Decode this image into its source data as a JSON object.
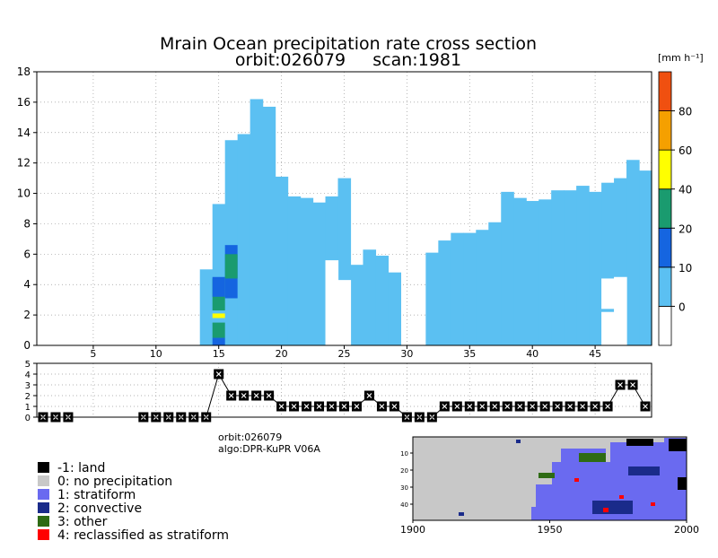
{
  "chart_data": [
    {
      "type": "heatmap",
      "title": "Mrain Ocean precipitation rate cross section",
      "subtitle": "orbit:026079     scan:1981",
      "xlim": [
        1,
        49
      ],
      "ylim": [
        0,
        18
      ],
      "x_ticks": [
        5,
        10,
        15,
        20,
        25,
        30,
        35,
        40,
        45
      ],
      "y_ticks": [
        0,
        2,
        4,
        6,
        8,
        10,
        12,
        14,
        16,
        18
      ],
      "grid": true,
      "colorbar": {
        "unit_label": "[mm h⁻¹]",
        "tick_labels": [
          "0",
          "10",
          "20",
          "40",
          "60",
          "80"
        ],
        "bins": [
          {
            "range": "<0",
            "color": "#ffffff"
          },
          {
            "range": "0-10",
            "color": "#5bc0f2"
          },
          {
            "range": "10-20",
            "color": "#1565e0"
          },
          {
            "range": "20-40",
            "color": "#1a9b6f"
          },
          {
            "range": "40-60",
            "color": "#ffff00"
          },
          {
            "range": "60-80",
            "color": "#f5a000"
          },
          {
            "range": "80+",
            "color": "#f05010"
          }
        ]
      },
      "columns": [
        {
          "x": 14,
          "top": 5.0,
          "base": 0
        },
        {
          "x": 15,
          "top": 9.3,
          "base": 0
        },
        {
          "x": 16,
          "top": 13.5,
          "base": 0
        },
        {
          "x": 17,
          "top": 13.9,
          "base": 0
        },
        {
          "x": 18,
          "top": 16.2,
          "base": 0
        },
        {
          "x": 19,
          "top": 15.7,
          "base": 0
        },
        {
          "x": 20,
          "top": 11.1,
          "base": 0
        },
        {
          "x": 21,
          "top": 9.8,
          "base": 0
        },
        {
          "x": 22,
          "top": 9.7,
          "base": 0
        },
        {
          "x": 23,
          "top": 9.4,
          "base": 0
        },
        {
          "x": 24,
          "top": 9.8,
          "base": 0
        },
        {
          "x": 25,
          "top": 11.0,
          "base": 0
        },
        {
          "x": 26,
          "top": 5.3,
          "base": 0
        },
        {
          "x": 27,
          "top": 6.3,
          "base": 0
        },
        {
          "x": 28,
          "top": 5.9,
          "base": 0
        },
        {
          "x": 29,
          "top": 4.8,
          "base": 0
        },
        {
          "x": 32,
          "top": 6.1,
          "base": 0
        },
        {
          "x": 33,
          "top": 6.9,
          "base": 0
        },
        {
          "x": 34,
          "top": 7.4,
          "base": 0
        },
        {
          "x": 35,
          "top": 7.4,
          "base": 0
        },
        {
          "x": 36,
          "top": 7.6,
          "base": 0
        },
        {
          "x": 37,
          "top": 8.1,
          "base": 0
        },
        {
          "x": 38,
          "top": 10.1,
          "base": 0
        },
        {
          "x": 39,
          "top": 9.7,
          "base": 0
        },
        {
          "x": 40,
          "top": 9.5,
          "base": 0
        },
        {
          "x": 41,
          "top": 9.6,
          "base": 0
        },
        {
          "x": 42,
          "top": 10.2,
          "base": 0
        },
        {
          "x": 43,
          "top": 10.2,
          "base": 0
        },
        {
          "x": 44,
          "top": 10.5,
          "base": 0
        },
        {
          "x": 45,
          "top": 10.1,
          "base": 0
        },
        {
          "x": 46,
          "top": 10.7,
          "base": 0
        },
        {
          "x": 47,
          "top": 11.0,
          "base": 0
        },
        {
          "x": 48,
          "top": 12.2,
          "base": 0
        },
        {
          "x": 49,
          "top": 11.5,
          "base": 0
        }
      ],
      "intense_cells": [
        {
          "x": 15,
          "y0": 0.0,
          "y1": 0.5,
          "bin": "10-20"
        },
        {
          "x": 15,
          "y0": 0.5,
          "y1": 1.5,
          "bin": "20-40"
        },
        {
          "x": 15,
          "y0": 1.8,
          "y1": 2.1,
          "bin": "40-60"
        },
        {
          "x": 15,
          "y0": 2.3,
          "y1": 4.4,
          "bin": "20-40"
        },
        {
          "x": 15,
          "y0": 3.2,
          "y1": 4.5,
          "bin": "10-20"
        },
        {
          "x": 16,
          "y0": 3.1,
          "y1": 6.6,
          "bin": "10-20"
        },
        {
          "x": 16,
          "y0": 4.4,
          "y1": 6.0,
          "bin": "20-40"
        }
      ],
      "empty_cells": [
        {
          "x": 24,
          "y0": 0.0,
          "y1": 5.6
        },
        {
          "x": 25,
          "y0": 0.0,
          "y1": 4.3
        },
        {
          "x": 46,
          "y0": 0.0,
          "y1": 2.2
        },
        {
          "x": 46,
          "y0": 2.4,
          "y1": 4.4
        },
        {
          "x": 47,
          "y0": 0.0,
          "y1": 4.5
        }
      ]
    },
    {
      "type": "line",
      "ylim": [
        0,
        5
      ],
      "y_ticks": [
        0,
        1,
        2,
        3,
        4,
        5
      ],
      "x": [
        1,
        2,
        3,
        9,
        10,
        11,
        12,
        13,
        14,
        15,
        16,
        17,
        18,
        19,
        20,
        21,
        22,
        23,
        24,
        25,
        26,
        27,
        28,
        29,
        30,
        31,
        32,
        33,
        34,
        35,
        36,
        37,
        38,
        39,
        40,
        41,
        42,
        43,
        44,
        45,
        46,
        47,
        48,
        49
      ],
      "values": [
        0,
        0,
        0,
        0,
        0,
        0,
        0,
        0,
        0,
        4,
        2,
        2,
        2,
        2,
        1,
        1,
        1,
        1,
        1,
        1,
        1,
        2,
        1,
        1,
        0,
        0,
        0,
        1,
        1,
        1,
        1,
        1,
        1,
        1,
        1,
        1,
        1,
        1,
        1,
        1,
        1,
        3,
        3,
        1
      ]
    }
  ],
  "info": {
    "orbit_line": "orbit:026079",
    "algo_line": "algo:DPR-KuPR V06A"
  },
  "legend": [
    {
      "label": "-1: land",
      "color": "#000000"
    },
    {
      "label": "0: no precipitation",
      "color": "#c8c8c8"
    },
    {
      "label": "1: stratiform",
      "color": "#6a6af0"
    },
    {
      "label": "2: convective",
      "color": "#1a2b8a"
    },
    {
      "label": "3: other",
      "color": "#2e6b14"
    },
    {
      "label": "4: reclassified as stratiform",
      "color": "#ff0000"
    }
  ],
  "map": {
    "x_ticks": [
      "1900",
      "1950",
      "2000"
    ],
    "y_ticks": [
      "10",
      "20",
      "30",
      "40"
    ]
  }
}
